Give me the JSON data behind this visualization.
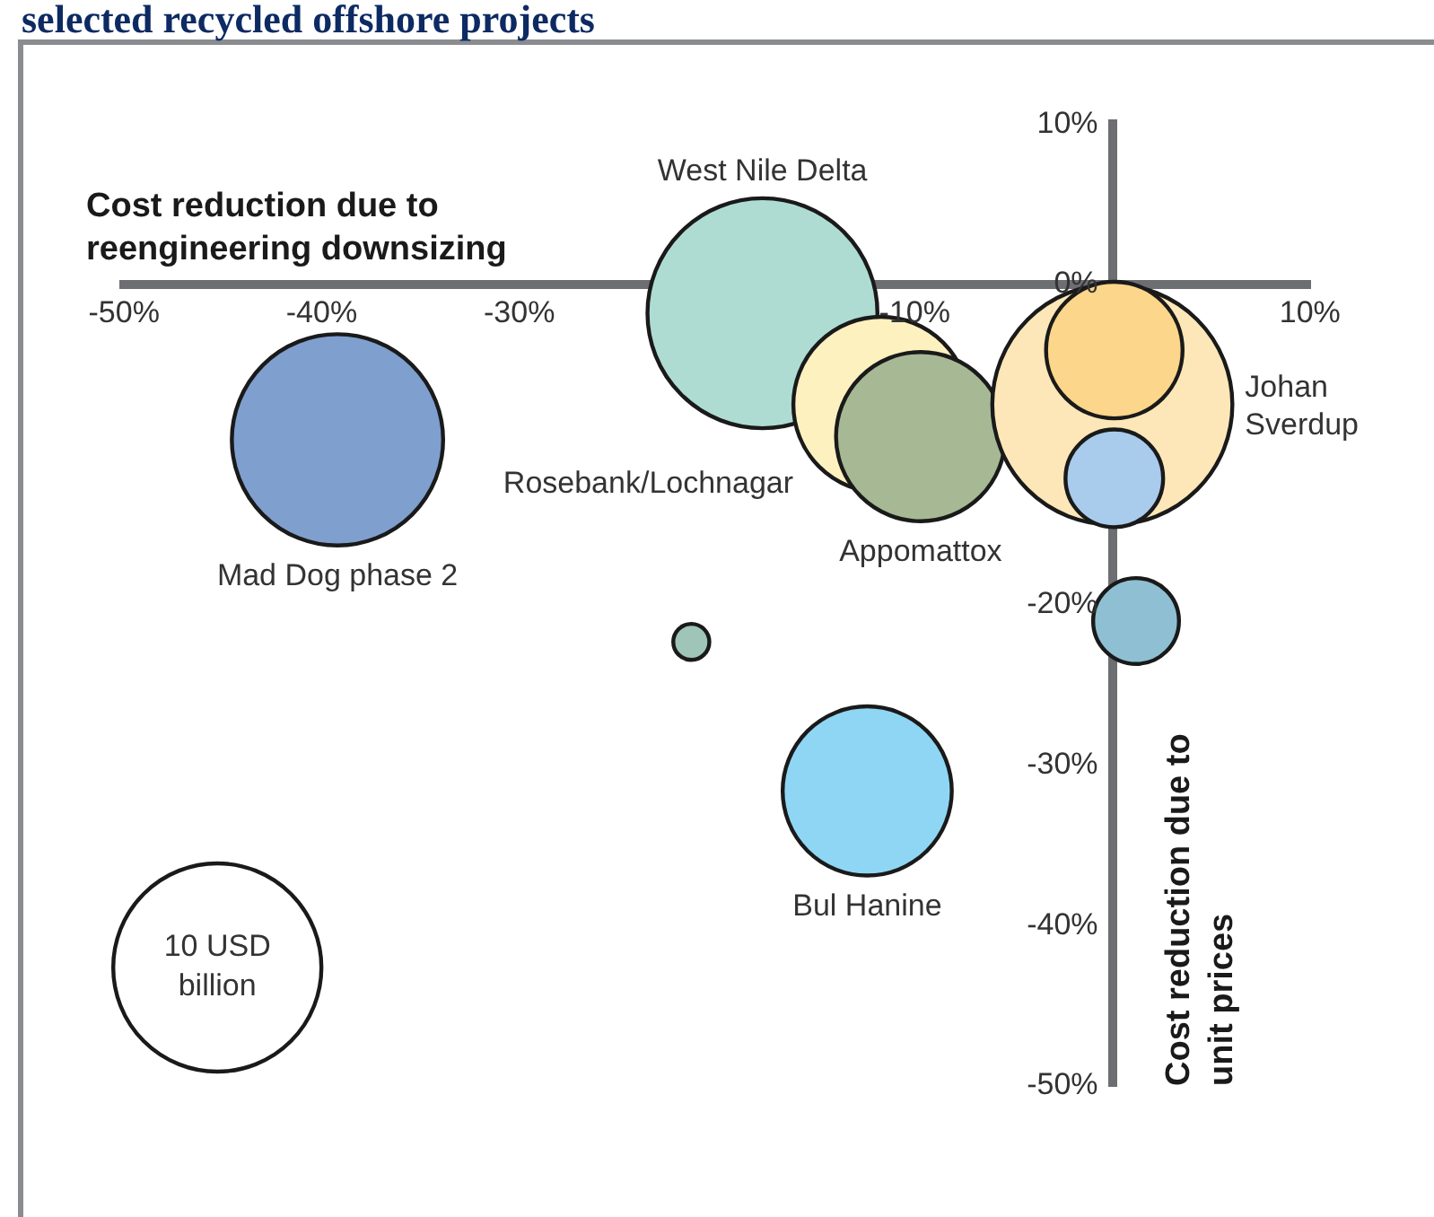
{
  "chart_data": {
    "type": "bubble",
    "title": "selected recycled offshore projects",
    "xlabel": "Cost reduction due to reengineering downsizing",
    "ylabel": "Cost reduction due to unit prices",
    "xlim": [
      -50,
      10
    ],
    "ylim": [
      -50,
      10
    ],
    "xticks": [
      {
        "value": -50,
        "label": "-50%"
      },
      {
        "value": -40,
        "label": "-40%"
      },
      {
        "value": -30,
        "label": "-30%"
      },
      {
        "value": -10,
        "label": "-10%"
      },
      {
        "value": 10,
        "label": "10%"
      }
    ],
    "yticks": [
      {
        "value": 10,
        "label": "10%"
      },
      {
        "value": 0,
        "label": "0%"
      },
      {
        "value": -20,
        "label": "-20%"
      },
      {
        "value": -30,
        "label": "-30%"
      },
      {
        "value": -40,
        "label": "-40%"
      },
      {
        "value": -50,
        "label": "-50%"
      }
    ],
    "size_legend": [
      {
        "value": 10,
        "label": "10 USD billion"
      }
    ],
    "series": [
      {
        "name": "Mad Dog phase 2",
        "color": "#7f9fcf",
        "x": [
          -39.2
        ],
        "values": [
          -9.7
        ],
        "sizes": [
          10.3
        ]
      },
      {
        "name": "West Nile Delta",
        "color": "#aedcd3",
        "x": [
          -17.7
        ],
        "values": [
          -1.8
        ],
        "sizes": [
          12.2
        ]
      },
      {
        "name": "Rosebank/Lochnagar",
        "color": "#fdf1c0",
        "x": [
          -11.7
        ],
        "values": [
          -7.5
        ],
        "sizes": [
          7.1
        ]
      },
      {
        "name": "Appomattox",
        "color": "#a6b994",
        "x": [
          -9.7
        ],
        "values": [
          -9.5
        ],
        "sizes": [
          6.6
        ]
      },
      {
        "name": "Johan Sverdup",
        "color": "#fde7b8",
        "x": [
          0
        ],
        "values": [
          -7.5
        ],
        "sizes": [
          13.3
        ]
      },
      {
        "color": "#fcd68a",
        "x": [
          0.1
        ],
        "values": [
          -4.1
        ],
        "sizes": [
          4.3
        ]
      },
      {
        "color": "#a9cbec",
        "x": [
          0.1
        ],
        "values": [
          -12.1
        ],
        "sizes": [
          2.2
        ]
      },
      {
        "color": "#8fbfd3",
        "x": [
          1.2
        ],
        "values": [
          -21
        ],
        "sizes": [
          1.7
        ]
      },
      {
        "color": "#9fc4b8",
        "x": [
          -21.3
        ],
        "values": [
          -22.3
        ],
        "sizes": [
          0.3
        ]
      },
      {
        "name": "Bul Hanine",
        "color": "#8fd6f4",
        "x": [
          -12.4
        ],
        "values": [
          -31.6
        ],
        "sizes": [
          6.6
        ]
      }
    ]
  }
}
